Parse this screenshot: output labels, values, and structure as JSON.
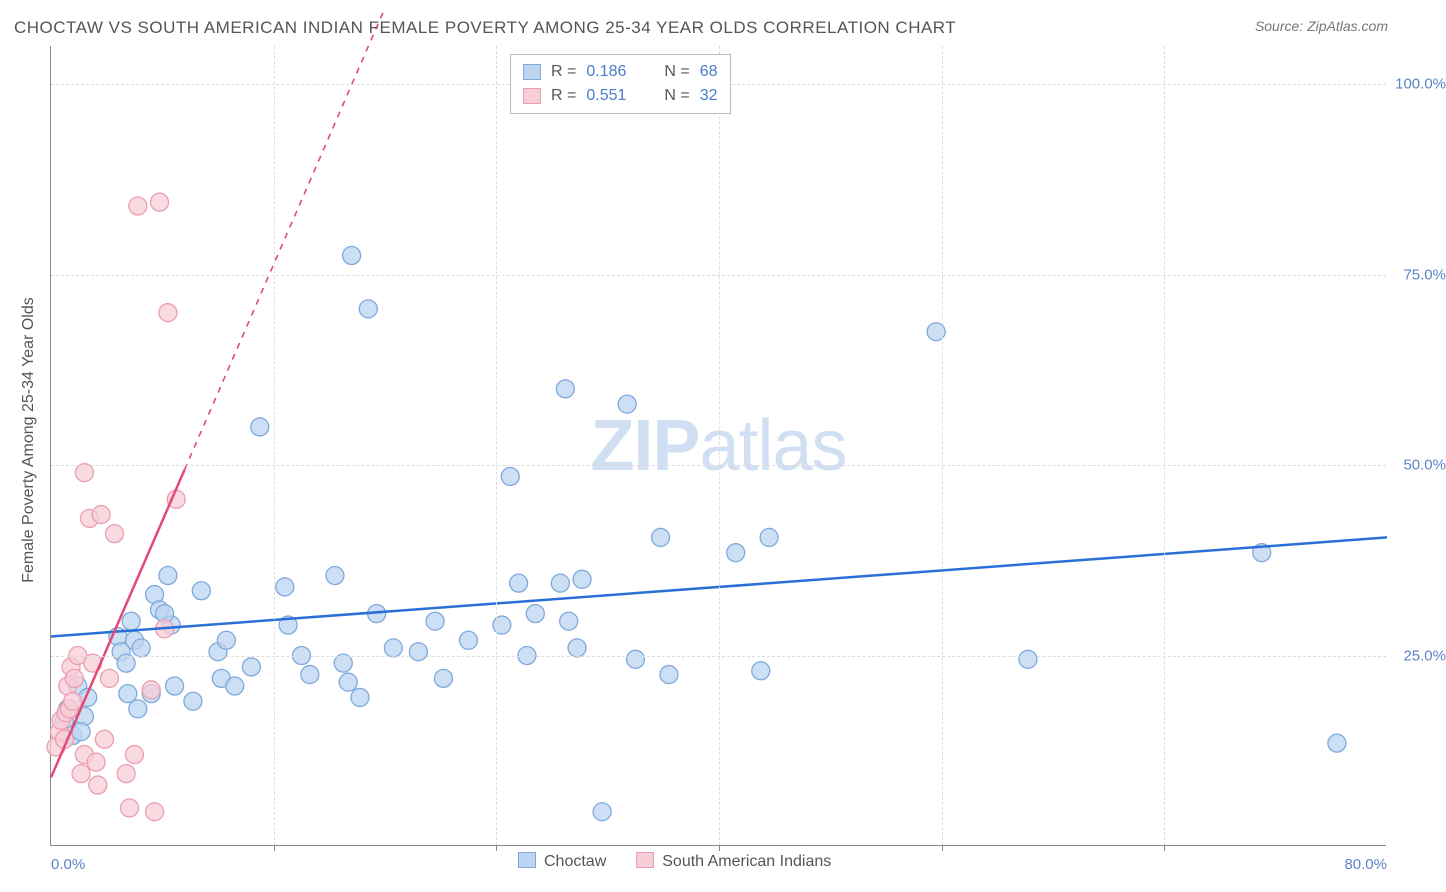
{
  "title": "CHOCTAW VS SOUTH AMERICAN INDIAN FEMALE POVERTY AMONG 25-34 YEAR OLDS CORRELATION CHART",
  "source_label": "Source: ZipAtlas.com",
  "ylabel": "Female Poverty Among 25-34 Year Olds",
  "watermark_zip": "ZIP",
  "watermark_atlas": "atlas",
  "chart": {
    "type": "scatter",
    "xlim": [
      0,
      80
    ],
    "ylim": [
      0,
      105
    ],
    "xtick_labels": [
      "0.0%",
      "80.0%"
    ],
    "ytick_labels": [
      "25.0%",
      "50.0%",
      "75.0%",
      "100.0%"
    ],
    "ytick_values": [
      25,
      50,
      75,
      100
    ],
    "gridline_color": "#dddddd",
    "axis_color": "#888888",
    "background_color": "#ffffff",
    "series": [
      {
        "name": "Choctaw",
        "marker_fill": "#bcd4f0",
        "marker_stroke": "#7ea9dd",
        "marker_radius": 9,
        "trend_color": "#2a6fd6",
        "trend_width": 2.5,
        "trend": {
          "x1": 0,
          "y1": 27.5,
          "x2": 80,
          "y2": 40.5,
          "dash_from_x": null
        },
        "R": "0.186",
        "N": "68",
        "points": [
          [
            0.8,
            16.5
          ],
          [
            1.0,
            18.0
          ],
          [
            1.3,
            14.5
          ],
          [
            1.6,
            21.0
          ],
          [
            2.0,
            17.0
          ],
          [
            2.2,
            19.5
          ],
          [
            4.0,
            27.5
          ],
          [
            4.2,
            25.5
          ],
          [
            4.5,
            24.0
          ],
          [
            4.8,
            29.5
          ],
          [
            5.0,
            27.0
          ],
          [
            5.4,
            26.0
          ],
          [
            6.0,
            20.0
          ],
          [
            6.2,
            33.0
          ],
          [
            6.5,
            31.0
          ],
          [
            7.0,
            35.5
          ],
          [
            7.2,
            29.0
          ],
          [
            7.4,
            21.0
          ],
          [
            8.5,
            19.0
          ],
          [
            9.0,
            33.5
          ],
          [
            10.0,
            25.5
          ],
          [
            10.2,
            22.0
          ],
          [
            10.5,
            27.0
          ],
          [
            11.0,
            21.0
          ],
          [
            12.5,
            55.0
          ],
          [
            14.0,
            34.0
          ],
          [
            14.2,
            29.0
          ],
          [
            15.0,
            25.0
          ],
          [
            15.5,
            22.5
          ],
          [
            17.0,
            35.5
          ],
          [
            17.5,
            24.0
          ],
          [
            17.8,
            21.5
          ],
          [
            18.0,
            77.5
          ],
          [
            18.5,
            19.5
          ],
          [
            19.0,
            70.5
          ],
          [
            19.5,
            30.5
          ],
          [
            20.5,
            26.0
          ],
          [
            22.0,
            25.5
          ],
          [
            23.0,
            29.5
          ],
          [
            23.5,
            22.0
          ],
          [
            25.0,
            27.0
          ],
          [
            27.0,
            29.0
          ],
          [
            27.5,
            48.5
          ],
          [
            28.0,
            34.5
          ],
          [
            28.5,
            25.0
          ],
          [
            29.0,
            30.5
          ],
          [
            30.5,
            34.5
          ],
          [
            30.8,
            60.0
          ],
          [
            31.0,
            29.5
          ],
          [
            31.5,
            26.0
          ],
          [
            31.8,
            35.0
          ],
          [
            33.0,
            4.5
          ],
          [
            34.5,
            58.0
          ],
          [
            35.0,
            24.5
          ],
          [
            36.5,
            40.5
          ],
          [
            37.0,
            22.5
          ],
          [
            41.0,
            38.5
          ],
          [
            42.5,
            23.0
          ],
          [
            43.0,
            40.5
          ],
          [
            53.0,
            67.5
          ],
          [
            58.5,
            24.5
          ],
          [
            72.5,
            38.5
          ],
          [
            77.0,
            13.5
          ],
          [
            5.2,
            18.0
          ],
          [
            6.8,
            30.5
          ],
          [
            4.6,
            20.0
          ],
          [
            12.0,
            23.5
          ],
          [
            1.8,
            15.0
          ]
        ]
      },
      {
        "name": "South American Indians",
        "marker_fill": "#f7cdd7",
        "marker_stroke": "#eb9db2",
        "trend_color": "#e24a76",
        "trend_width": 2.5,
        "marker_radius": 9,
        "trend": {
          "x1": 0,
          "y1": 9.0,
          "x2": 20.0,
          "y2": 110.0,
          "dash_from_x": 8.0
        },
        "R": "0.551",
        "N": "32",
        "points": [
          [
            0.3,
            13.0
          ],
          [
            0.5,
            15.0
          ],
          [
            0.6,
            16.5
          ],
          [
            0.8,
            14.0
          ],
          [
            0.9,
            17.5
          ],
          [
            1.0,
            21.0
          ],
          [
            1.1,
            18.0
          ],
          [
            1.2,
            23.5
          ],
          [
            1.3,
            19.0
          ],
          [
            1.4,
            22.0
          ],
          [
            1.6,
            25.0
          ],
          [
            1.8,
            9.5
          ],
          [
            2.0,
            12.0
          ],
          [
            2.0,
            49.0
          ],
          [
            2.3,
            43.0
          ],
          [
            2.5,
            24.0
          ],
          [
            2.7,
            11.0
          ],
          [
            2.8,
            8.0
          ],
          [
            3.0,
            43.5
          ],
          [
            3.2,
            14.0
          ],
          [
            3.5,
            22.0
          ],
          [
            3.8,
            41.0
          ],
          [
            4.5,
            9.5
          ],
          [
            4.7,
            5.0
          ],
          [
            5.0,
            12.0
          ],
          [
            5.2,
            84.0
          ],
          [
            6.0,
            20.5
          ],
          [
            6.2,
            4.5
          ],
          [
            6.5,
            84.5
          ],
          [
            6.8,
            28.5
          ],
          [
            7.0,
            70.0
          ],
          [
            7.5,
            45.5
          ]
        ]
      }
    ]
  },
  "stats_legend": {
    "rows": [
      {
        "swatch_fill": "#bcd4f0",
        "swatch_border": "#7ea9dd",
        "R_label": "R =",
        "R": "0.186",
        "N_label": "N =",
        "N": "68"
      },
      {
        "swatch_fill": "#f7cdd7",
        "swatch_border": "#eb9db2",
        "R_label": "R =",
        "R": "0.551",
        "N_label": "N =",
        "N": "32"
      }
    ]
  },
  "bottom_legend": {
    "items": [
      {
        "swatch_fill": "#bcd4f0",
        "swatch_border": "#7ea9dd",
        "label": "Choctaw"
      },
      {
        "swatch_fill": "#f7cdd7",
        "swatch_border": "#eb9db2",
        "label": "South American Indians"
      }
    ]
  }
}
